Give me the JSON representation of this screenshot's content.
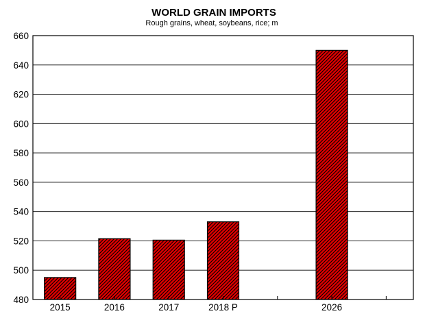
{
  "chart_data": {
    "type": "bar",
    "title": "WORLD GRAIN IMPORTS",
    "subtitle": "Rough grains, wheat, soybeans, rice;  m",
    "categories": [
      "2015",
      "2016",
      "2017",
      "2018 P",
      "",
      "2026",
      ""
    ],
    "values": [
      495,
      521.5,
      520.5,
      533,
      null,
      650,
      null
    ],
    "ylim": [
      480,
      660
    ],
    "yticks": [
      480,
      500,
      520,
      540,
      560,
      580,
      600,
      620,
      640,
      660
    ],
    "grid": true,
    "bar_color": "#e00000",
    "bar_pattern": "diagonal hatch"
  }
}
